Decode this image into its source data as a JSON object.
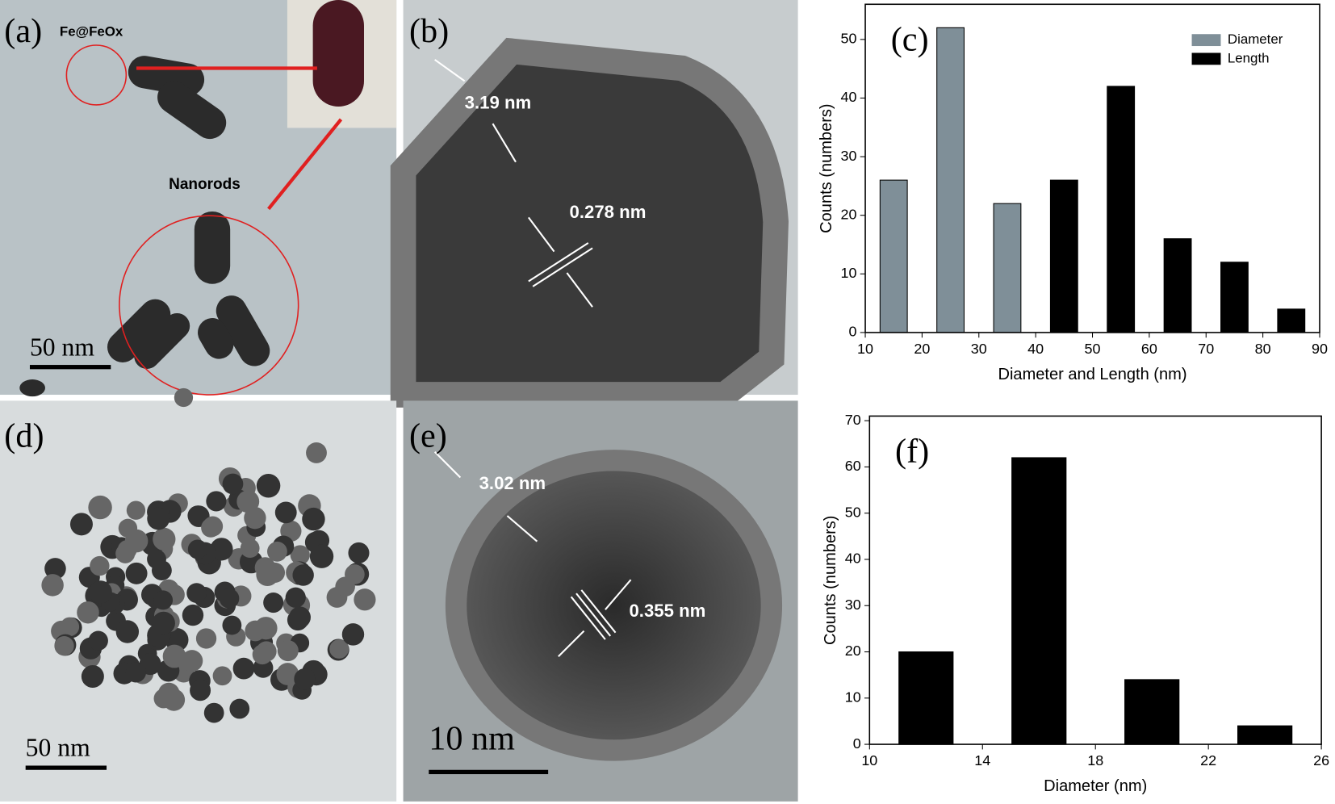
{
  "panels": [
    {
      "label": "(a)",
      "annotations": [
        "Fe@FeOx",
        "Nanorods"
      ],
      "scale_bar": "50 nm"
    },
    {
      "label": "(b)",
      "annotations": [
        "3.19 nm",
        "0.278 nm"
      ]
    },
    {
      "label": "(d)",
      "scale_bar": "50 nm"
    },
    {
      "label": "(e)",
      "annotations": [
        "3.02 nm",
        "0.355 nm"
      ],
      "scale_bar": "10 nm"
    }
  ],
  "chart_data": [
    {
      "type": "bar",
      "panel_label": "(c)",
      "x_label": "Diameter and Length (nm)",
      "y_label": "Counts (numbers)",
      "series": [
        {
          "name": "Diameter",
          "color": "#7f8f98",
          "x": [
            15,
            25,
            35
          ],
          "values": [
            26,
            52,
            22
          ]
        },
        {
          "name": "Length",
          "color": "#000000",
          "x": [
            45,
            55,
            65,
            75,
            85
          ],
          "values": [
            26,
            42,
            16,
            12,
            4
          ]
        }
      ],
      "xlim": [
        10,
        90
      ],
      "xticks": [
        10,
        20,
        30,
        40,
        50,
        60,
        70,
        80,
        90
      ],
      "ylim": [
        0,
        56
      ],
      "yticks": [
        0,
        10,
        20,
        30,
        40,
        50
      ],
      "legend": "top-right"
    },
    {
      "type": "bar",
      "panel_label": "(f)",
      "x_label": "Diameter (nm)",
      "y_label": "Counts (numbers)",
      "series": [
        {
          "color": "#000000",
          "x": [
            12,
            16,
            20,
            24
          ],
          "values": [
            20,
            62,
            14,
            4
          ]
        }
      ],
      "xlim": [
        10,
        26
      ],
      "xticks": [
        10,
        14,
        18,
        22,
        26
      ],
      "ylim": [
        0,
        71
      ],
      "yticks": [
        0,
        10,
        20,
        30,
        40,
        50,
        60,
        70
      ]
    }
  ]
}
